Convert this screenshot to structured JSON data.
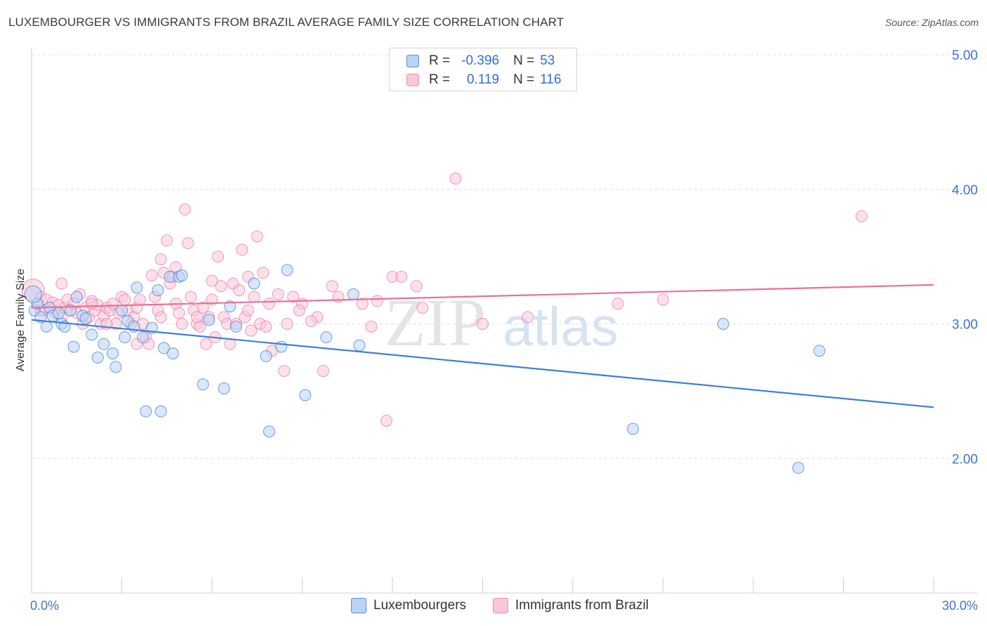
{
  "title": "LUXEMBOURGER VS IMMIGRANTS FROM BRAZIL AVERAGE FAMILY SIZE CORRELATION CHART",
  "source": "Source: ZipAtlas.com",
  "legend": {
    "r_label": "R =",
    "n_label": "N =",
    "series1": {
      "r": "-0.396",
      "n": "53"
    },
    "series2": {
      "r": "0.119",
      "n": "116"
    }
  },
  "watermark": {
    "part1": "ZIP",
    "part2": "atlas"
  },
  "chart_data": {
    "type": "scatter",
    "title": "LUXEMBOURGER VS IMMIGRANTS FROM BRAZIL AVERAGE FAMILY SIZE CORRELATION CHART",
    "xlabel": "",
    "ylabel": "Average Family Size",
    "xlim": [
      0,
      30
    ],
    "ylim": [
      1.0,
      5.0
    ],
    "y_ticks": [
      2.0,
      3.0,
      4.0,
      5.0
    ],
    "y_tick_labels": [
      "2.00",
      "3.00",
      "4.00",
      "5.00"
    ],
    "x_tick_labels": [
      "0.0%",
      "30.0%"
    ],
    "grid": true,
    "colors": {
      "blue": "#3f7fd8",
      "pink": "#e8709a",
      "blue_fill": "#b9d3f5",
      "pink_fill": "#f9c8d8",
      "tick": "#3f74c9"
    },
    "series": [
      {
        "name": "Luxembourgers",
        "color": "#3f7fd8",
        "trend": {
          "x": [
            0,
            30
          ],
          "y": [
            3.03,
            2.38
          ]
        },
        "points": [
          [
            0.1,
            3.1
          ],
          [
            0.2,
            3.15
          ],
          [
            0.3,
            3.05
          ],
          [
            0.5,
            2.98
          ],
          [
            0.6,
            3.12
          ],
          [
            0.7,
            3.06
          ],
          [
            0.9,
            3.08
          ],
          [
            1.0,
            3.0
          ],
          [
            1.1,
            2.98
          ],
          [
            1.3,
            3.1
          ],
          [
            1.4,
            2.83
          ],
          [
            1.5,
            3.2
          ],
          [
            1.7,
            3.06
          ],
          [
            1.8,
            3.04
          ],
          [
            2.0,
            2.92
          ],
          [
            2.2,
            2.75
          ],
          [
            2.4,
            2.85
          ],
          [
            2.7,
            2.78
          ],
          [
            2.8,
            2.68
          ],
          [
            3.0,
            3.1
          ],
          [
            3.1,
            2.9
          ],
          [
            3.2,
            3.02
          ],
          [
            3.4,
            2.98
          ],
          [
            3.5,
            3.27
          ],
          [
            3.7,
            2.9
          ],
          [
            3.8,
            2.35
          ],
          [
            4.0,
            2.97
          ],
          [
            4.2,
            3.25
          ],
          [
            4.3,
            2.35
          ],
          [
            4.4,
            2.82
          ],
          [
            4.6,
            3.35
          ],
          [
            4.7,
            2.78
          ],
          [
            4.9,
            3.35
          ],
          [
            5.0,
            3.36
          ],
          [
            5.7,
            2.55
          ],
          [
            5.9,
            3.03
          ],
          [
            6.4,
            2.52
          ],
          [
            6.6,
            3.13
          ],
          [
            6.8,
            2.98
          ],
          [
            7.4,
            3.3
          ],
          [
            7.8,
            2.76
          ],
          [
            7.9,
            2.2
          ],
          [
            8.3,
            2.83
          ],
          [
            8.5,
            3.4
          ],
          [
            9.1,
            2.47
          ],
          [
            9.8,
            2.9
          ],
          [
            10.7,
            3.22
          ],
          [
            10.9,
            2.84
          ],
          [
            20.0,
            2.22
          ],
          [
            23.0,
            3.0
          ],
          [
            25.5,
            1.93
          ],
          [
            26.2,
            2.8
          ],
          [
            0.05,
            3.22
          ]
        ]
      },
      {
        "name": "Immigrants from Brazil",
        "color": "#e8709a",
        "trend": {
          "x": [
            0,
            30
          ],
          "y": [
            3.12,
            3.29
          ]
        },
        "points": [
          [
            0.05,
            3.25
          ],
          [
            0.2,
            3.15
          ],
          [
            0.3,
            3.2
          ],
          [
            0.4,
            3.1
          ],
          [
            0.5,
            3.18
          ],
          [
            0.6,
            3.12
          ],
          [
            0.7,
            3.16
          ],
          [
            0.8,
            3.08
          ],
          [
            0.9,
            3.14
          ],
          [
            1.0,
            3.05
          ],
          [
            1.1,
            3.12
          ],
          [
            1.2,
            3.18
          ],
          [
            1.3,
            3.1
          ],
          [
            1.4,
            3.15
          ],
          [
            1.5,
            3.08
          ],
          [
            1.6,
            3.22
          ],
          [
            1.7,
            3.0
          ],
          [
            1.8,
            3.12
          ],
          [
            1.9,
            3.05
          ],
          [
            2.0,
            3.17
          ],
          [
            2.1,
            3.1
          ],
          [
            2.2,
            3.14
          ],
          [
            2.3,
            3.0
          ],
          [
            2.4,
            3.06
          ],
          [
            2.5,
            3.12
          ],
          [
            2.6,
            3.1
          ],
          [
            2.7,
            3.15
          ],
          [
            2.8,
            3.0
          ],
          [
            2.9,
            3.08
          ],
          [
            3.0,
            3.2
          ],
          [
            3.1,
            3.18
          ],
          [
            3.2,
            3.1
          ],
          [
            3.3,
            3.0
          ],
          [
            3.4,
            3.05
          ],
          [
            3.5,
            3.12
          ],
          [
            3.6,
            3.18
          ],
          [
            3.7,
            3.0
          ],
          [
            3.8,
            2.9
          ],
          [
            3.9,
            2.85
          ],
          [
            4.0,
            3.36
          ],
          [
            4.1,
            3.2
          ],
          [
            4.2,
            3.1
          ],
          [
            4.3,
            3.48
          ],
          [
            4.4,
            3.38
          ],
          [
            4.5,
            3.62
          ],
          [
            4.6,
            3.3
          ],
          [
            4.7,
            3.35
          ],
          [
            4.8,
            3.15
          ],
          [
            4.9,
            3.08
          ],
          [
            5.0,
            3.0
          ],
          [
            5.1,
            3.85
          ],
          [
            5.2,
            3.6
          ],
          [
            5.3,
            3.2
          ],
          [
            5.4,
            3.1
          ],
          [
            5.5,
            3.0
          ],
          [
            5.6,
            2.98
          ],
          [
            5.7,
            3.12
          ],
          [
            5.8,
            2.85
          ],
          [
            5.9,
            3.05
          ],
          [
            6.0,
            3.18
          ],
          [
            6.1,
            2.9
          ],
          [
            6.2,
            3.5
          ],
          [
            6.3,
            3.28
          ],
          [
            6.4,
            3.05
          ],
          [
            6.5,
            3.0
          ],
          [
            6.6,
            2.85
          ],
          [
            6.7,
            3.3
          ],
          [
            6.8,
            3.0
          ],
          [
            6.9,
            3.25
          ],
          [
            7.0,
            3.55
          ],
          [
            7.1,
            3.05
          ],
          [
            7.2,
            3.1
          ],
          [
            7.3,
            2.95
          ],
          [
            7.4,
            3.2
          ],
          [
            7.5,
            3.65
          ],
          [
            7.6,
            3.0
          ],
          [
            7.7,
            3.38
          ],
          [
            7.8,
            2.98
          ],
          [
            7.9,
            3.15
          ],
          [
            8.0,
            2.8
          ],
          [
            8.2,
            3.22
          ],
          [
            8.4,
            2.65
          ],
          [
            8.5,
            3.0
          ],
          [
            8.7,
            3.2
          ],
          [
            9.0,
            3.15
          ],
          [
            9.5,
            3.05
          ],
          [
            9.7,
            2.65
          ],
          [
            10.0,
            3.28
          ],
          [
            10.2,
            3.2
          ],
          [
            11.0,
            3.15
          ],
          [
            11.5,
            3.17
          ],
          [
            11.8,
            2.28
          ],
          [
            12.0,
            3.35
          ],
          [
            12.3,
            3.35
          ],
          [
            12.8,
            3.28
          ],
          [
            13.0,
            3.12
          ],
          [
            14.1,
            4.08
          ],
          [
            15.0,
            3.0
          ],
          [
            16.5,
            3.05
          ],
          [
            19.5,
            3.15
          ],
          [
            21.0,
            3.18
          ],
          [
            27.6,
            3.8
          ],
          [
            1.0,
            3.3
          ],
          [
            2.5,
            3.0
          ],
          [
            3.5,
            2.85
          ],
          [
            4.8,
            3.42
          ],
          [
            6.0,
            3.32
          ],
          [
            7.2,
            3.35
          ],
          [
            9.3,
            3.02
          ],
          [
            11.3,
            2.98
          ],
          [
            0.3,
            3.1
          ],
          [
            5.5,
            3.05
          ],
          [
            8.9,
            3.1
          ],
          [
            2.0,
            3.15
          ],
          [
            4.3,
            3.05
          ]
        ]
      }
    ],
    "legend": [
      "Luxembourgers",
      "Immigrants from Brazil"
    ]
  }
}
